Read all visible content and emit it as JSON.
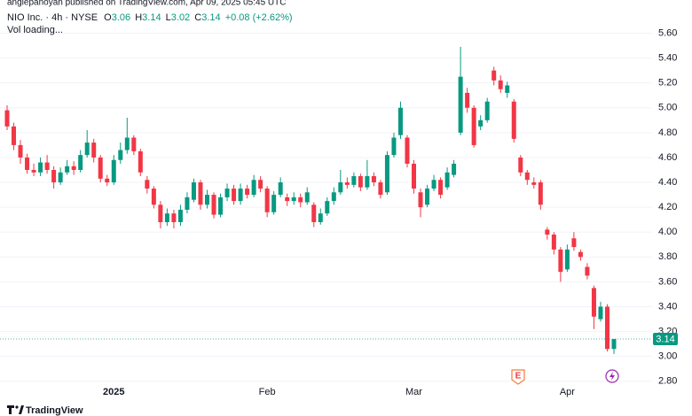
{
  "header": {
    "published": "anglepanoyan published on TradingView.com, Apr 09, 2025 05:45 UTC",
    "symbol": "NIO Inc. · 4h · NYSE",
    "ohlc": [
      {
        "label": "O",
        "value": 3.06
      },
      {
        "label": "H",
        "value": 3.14
      },
      {
        "label": "L",
        "value": 3.02
      },
      {
        "label": "C",
        "value": 3.14
      }
    ],
    "change": "+0.08 (+2.62%)",
    "volume": "Vol loading...",
    "brand": "TradingView"
  },
  "chart_data": {
    "type": "candlestick",
    "categories": [
      null,
      null,
      null,
      null,
      null,
      null,
      null,
      null,
      null,
      null,
      null,
      null,
      null,
      null,
      null,
      null,
      "2025",
      null,
      null,
      null,
      null,
      null,
      null,
      null,
      null,
      null,
      null,
      null,
      null,
      null,
      null,
      null,
      null,
      null,
      null,
      null,
      null,
      null,
      null,
      "Feb",
      null,
      null,
      null,
      null,
      null,
      null,
      null,
      null,
      null,
      null,
      null,
      null,
      null,
      null,
      null,
      null,
      null,
      null,
      null,
      null,
      null,
      "Mar",
      null,
      null,
      null,
      null,
      null,
      null,
      null,
      null,
      null,
      null,
      null,
      null,
      null,
      null,
      null,
      null,
      null,
      null,
      null,
      null,
      null,
      null,
      "Apr",
      null,
      null,
      null,
      null,
      null,
      null,
      null
    ],
    "open": [
      4.98,
      4.85,
      4.7,
      4.6,
      4.5,
      4.48,
      4.56,
      4.5,
      4.4,
      4.48,
      4.53,
      4.5,
      4.62,
      4.72,
      4.6,
      4.43,
      4.4,
      4.58,
      4.66,
      4.76,
      4.65,
      4.42,
      4.35,
      4.22,
      4.08,
      4.15,
      4.08,
      4.18,
      4.26,
      4.4,
      4.22,
      4.3,
      4.14,
      4.28,
      4.35,
      4.25,
      4.35,
      4.3,
      4.42,
      4.35,
      4.16,
      4.3,
      4.28,
      4.25,
      4.28,
      4.24,
      4.22,
      4.08,
      4.15,
      4.25,
      4.32,
      4.4,
      4.38,
      4.45,
      4.36,
      4.45,
      4.4,
      4.32,
      4.62,
      4.78,
      4.76,
      4.55,
      4.32,
      4.22,
      4.35,
      4.42,
      4.36,
      4.46,
      4.8,
      5.12,
      5.0,
      4.85,
      4.9,
      5.3,
      5.22,
      5.12,
      5.05,
      4.6,
      4.48,
      4.4,
      4.4,
      4.02,
      3.98,
      3.86,
      3.7,
      3.95,
      3.84,
      3.72,
      3.55,
      3.3,
      3.4,
      3.06
    ],
    "high": [
      5.02,
      4.88,
      4.74,
      4.63,
      4.55,
      4.6,
      4.62,
      4.53,
      4.52,
      4.58,
      4.57,
      4.66,
      4.82,
      4.75,
      4.62,
      4.46,
      4.62,
      4.72,
      4.92,
      4.78,
      4.67,
      4.45,
      4.37,
      4.25,
      4.19,
      4.18,
      4.22,
      4.32,
      4.43,
      4.42,
      4.34,
      4.32,
      4.31,
      4.39,
      4.38,
      4.39,
      4.38,
      4.46,
      4.45,
      4.37,
      4.33,
      4.44,
      4.31,
      4.32,
      4.31,
      4.36,
      4.24,
      4.19,
      4.28,
      4.36,
      4.5,
      4.44,
      4.48,
      4.47,
      4.58,
      4.48,
      4.42,
      4.65,
      4.8,
      5.05,
      4.78,
      4.58,
      4.35,
      4.38,
      4.46,
      4.44,
      4.52,
      4.58,
      5.49,
      5.16,
      5.02,
      4.94,
      5.08,
      5.33,
      5.26,
      5.21,
      5.07,
      4.62,
      4.5,
      4.44,
      4.42,
      4.04,
      4.0,
      3.88,
      3.9,
      4.0,
      3.86,
      3.75,
      3.57,
      3.44,
      3.42,
      3.14
    ],
    "low": [
      4.82,
      4.66,
      4.55,
      4.47,
      4.45,
      4.45,
      4.47,
      4.35,
      4.38,
      4.46,
      4.46,
      4.48,
      4.6,
      4.56,
      4.4,
      4.37,
      4.38,
      4.55,
      4.63,
      4.62,
      4.45,
      4.31,
      4.19,
      4.03,
      4.05,
      4.03,
      4.05,
      4.15,
      4.24,
      4.18,
      4.19,
      4.11,
      4.12,
      4.25,
      4.22,
      4.22,
      4.27,
      4.28,
      4.32,
      4.12,
      4.14,
      4.28,
      4.21,
      4.22,
      4.2,
      4.22,
      4.04,
      4.06,
      4.13,
      4.22,
      4.3,
      4.35,
      4.36,
      4.33,
      4.34,
      4.37,
      4.27,
      4.3,
      4.6,
      4.75,
      4.52,
      4.31,
      4.12,
      4.2,
      4.33,
      4.27,
      4.34,
      4.44,
      4.78,
      4.96,
      4.68,
      4.82,
      4.88,
      5.18,
      5.12,
      5.08,
      4.72,
      4.45,
      4.38,
      4.35,
      4.18,
      3.94,
      3.82,
      3.6,
      3.68,
      3.85,
      3.77,
      3.62,
      3.22,
      3.28,
      3.04,
      3.02
    ],
    "close": [
      4.85,
      4.7,
      4.6,
      4.5,
      4.48,
      4.56,
      4.5,
      4.4,
      4.48,
      4.53,
      4.5,
      4.62,
      4.72,
      4.6,
      4.43,
      4.4,
      4.58,
      4.66,
      4.76,
      4.65,
      4.48,
      4.35,
      4.22,
      4.08,
      4.15,
      4.08,
      4.18,
      4.28,
      4.4,
      4.22,
      4.3,
      4.14,
      4.28,
      4.35,
      4.25,
      4.35,
      4.3,
      4.42,
      4.35,
      4.16,
      4.3,
      4.4,
      4.25,
      4.28,
      4.24,
      4.32,
      4.08,
      4.15,
      4.25,
      4.32,
      4.4,
      4.38,
      4.45,
      4.36,
      4.45,
      4.4,
      4.3,
      4.62,
      4.76,
      5.0,
      4.55,
      4.35,
      4.2,
      4.35,
      4.42,
      4.3,
      4.48,
      4.55,
      5.25,
      5.0,
      4.7,
      4.9,
      5.05,
      5.22,
      5.15,
      5.18,
      4.75,
      4.48,
      4.42,
      4.38,
      4.22,
      3.98,
      3.86,
      3.68,
      3.86,
      3.88,
      3.8,
      3.65,
      3.32,
      3.4,
      3.06,
      3.14
    ],
    "up_color": "#089981",
    "down_color": "#f23645",
    "ylim": [
      2.77,
      5.81
    ],
    "yticks": [
      {
        "value": 2.8,
        "label": "2.80"
      },
      {
        "value": 3.0,
        "label": "3.00"
      },
      {
        "value": 3.2,
        "label": "3.20"
      },
      {
        "value": 3.4,
        "label": "3.40"
      },
      {
        "value": 3.6,
        "label": "3.60"
      },
      {
        "value": 3.8,
        "label": "3.80"
      },
      {
        "value": 4.0,
        "label": "4.00"
      },
      {
        "value": 4.2,
        "label": "4.20"
      },
      {
        "value": 4.4,
        "label": "4.40"
      },
      {
        "value": 4.6,
        "label": "4.60"
      },
      {
        "value": 4.8,
        "label": "4.80"
      },
      {
        "value": 5.0,
        "label": "5.00"
      },
      {
        "value": 5.2,
        "label": "5.20"
      },
      {
        "value": 5.4,
        "label": "5.40"
      },
      {
        "value": 5.6,
        "label": "5.60"
      }
    ],
    "grid": true,
    "last_price": 3.14,
    "earnings_marker": "E"
  }
}
